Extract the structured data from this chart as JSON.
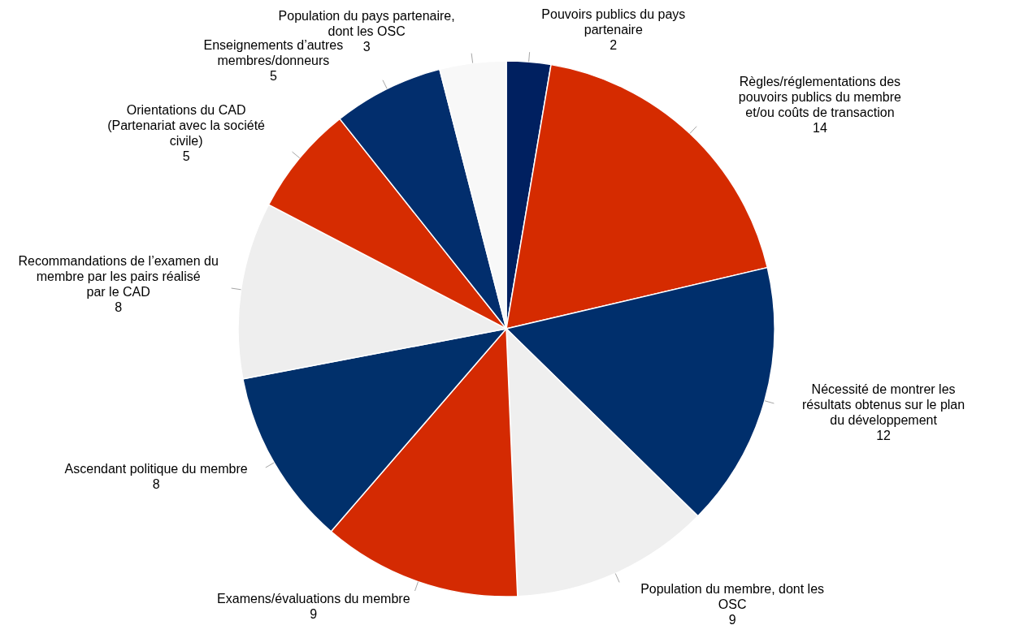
{
  "chart_data": {
    "type": "pie",
    "categories": [
      "Pouvoirs publics du pays partenaire",
      "Règles/réglementations des pouvoirs publics du membre et/ou coûts de transaction",
      "Nécessité de montrer les résultats obtenus sur le plan du développement",
      "Population du membre, dont les OSC",
      "Examens/évaluations du membre",
      "Ascendant politique du membre",
      "Recommandations de l’examen du membre par les pairs réalisé par le CAD",
      "Orientations du CAD (Partenariat avec la société civile)",
      "Enseignements d’autres membres/donneurs",
      "Population du pays partenaire, dont les OSC"
    ],
    "values": [
      2,
      14,
      12,
      9,
      9,
      8,
      8,
      5,
      5,
      3
    ],
    "colors": [
      "#002060",
      "#d52b00",
      "#002f6c",
      "#efefef",
      "#d42a02",
      "#01306b",
      "#eeeeee",
      "#d62c01",
      "#022e6d",
      "#f8f8f8"
    ],
    "data_labels": true
  }
}
